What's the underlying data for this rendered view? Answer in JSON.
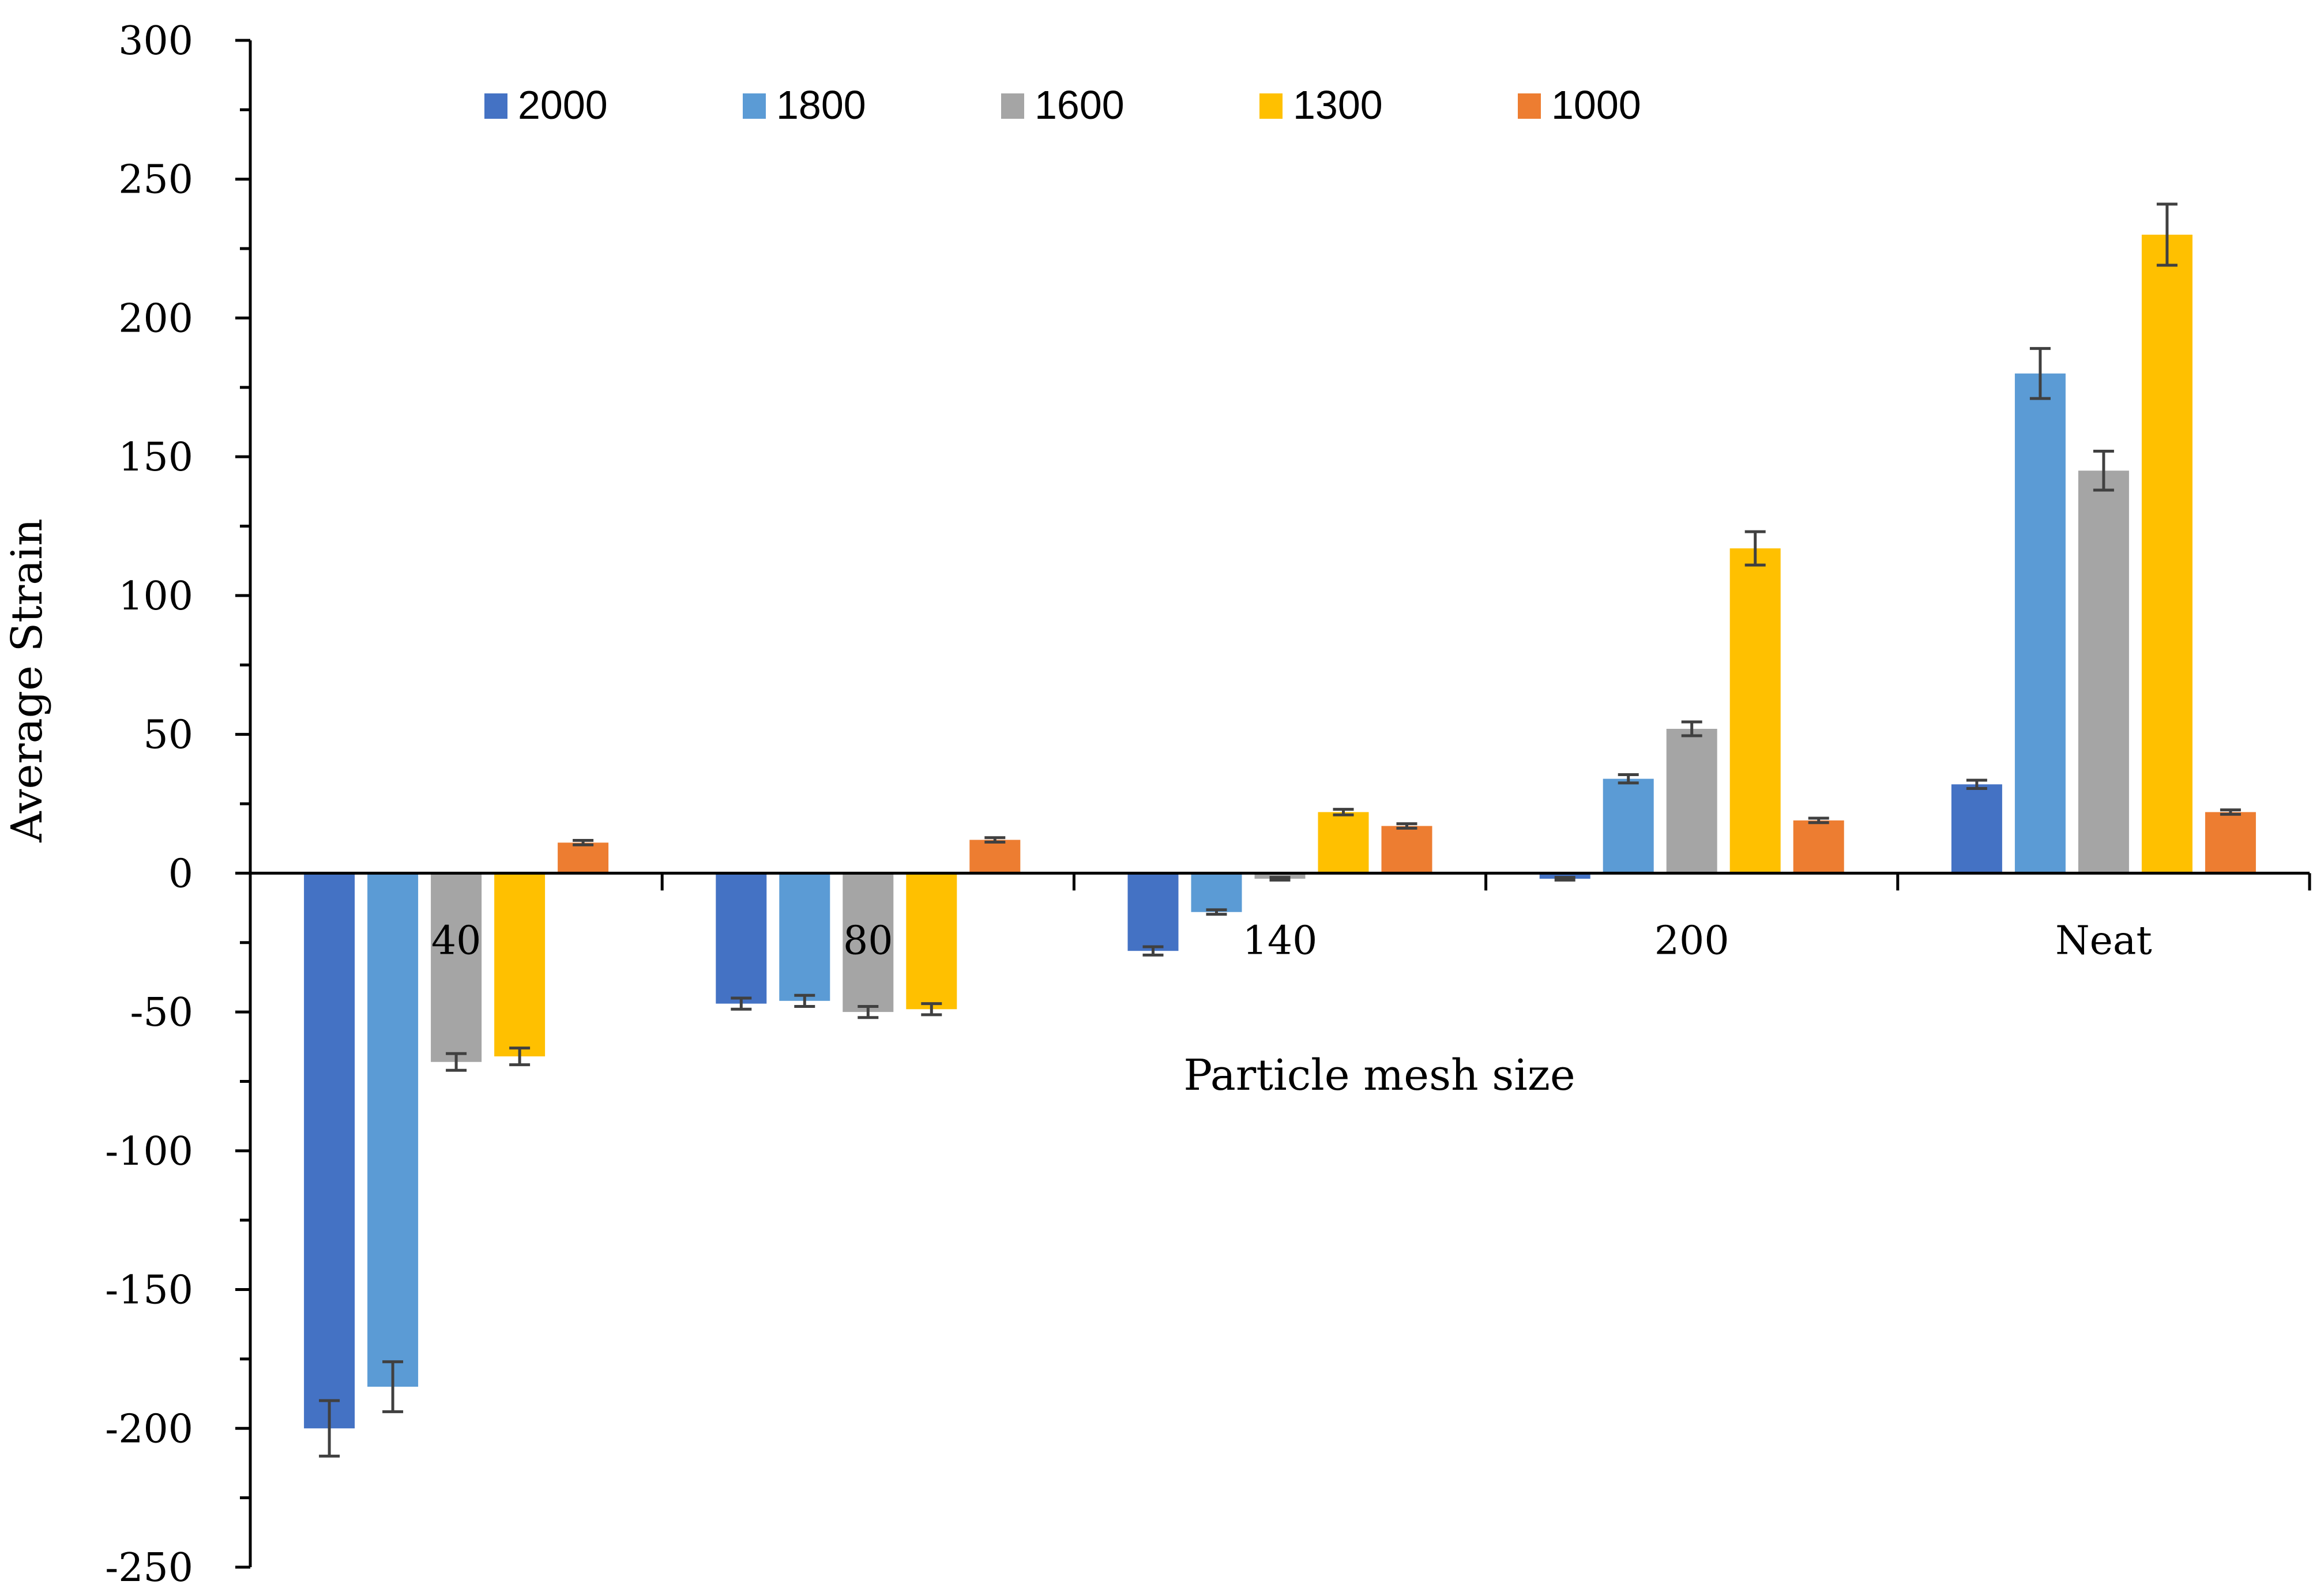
{
  "chart_data": {
    "type": "bar",
    "title": "",
    "xlabel": "Particle mesh size",
    "ylabel": "Average Strain",
    "ylim": [
      -250,
      300
    ],
    "ytick_step": 50,
    "yticks": [
      "300",
      "250",
      "200",
      "150",
      "100",
      "50",
      "0",
      "-50",
      "-100",
      "-150",
      "-200",
      "-250"
    ],
    "categories": [
      "40",
      "80",
      "140",
      "200",
      "Neat"
    ],
    "legend_position": "top",
    "series": [
      {
        "name": "2000",
        "color": "#4472C4",
        "values": [
          -200,
          -47,
          -28,
          -2,
          32
        ],
        "errors": [
          10,
          2,
          1.5,
          0.5,
          1.5
        ]
      },
      {
        "name": "1800",
        "color": "#5B9BD5",
        "values": [
          -185,
          -46,
          -14,
          34,
          180
        ],
        "errors": [
          9,
          2,
          0.8,
          1.5,
          9
        ]
      },
      {
        "name": "1600",
        "color": "#A5A5A5",
        "values": [
          -68,
          -50,
          -2,
          52,
          145
        ],
        "errors": [
          3,
          2,
          0.5,
          2.5,
          7
        ]
      },
      {
        "name": "1300",
        "color": "#FFC000",
        "values": [
          -66,
          -49,
          22,
          117,
          230
        ],
        "errors": [
          3,
          2,
          1,
          6,
          11
        ]
      },
      {
        "name": "1000",
        "color": "#ED7D31",
        "values": [
          11,
          12,
          17,
          19,
          22
        ],
        "errors": [
          0.8,
          0.8,
          0.8,
          0.8,
          0.8
        ]
      }
    ]
  }
}
